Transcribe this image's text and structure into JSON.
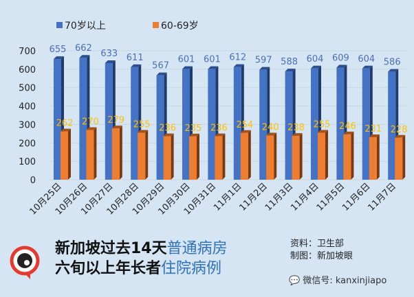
{
  "chart_data": {
    "type": "bar",
    "categories": [
      "10月25日",
      "10月26日",
      "10月27日",
      "10月28日",
      "10月29日",
      "10月30日",
      "10月31日",
      "11月1日",
      "11月2日",
      "11月3日",
      "11月4日",
      "11月5日",
      "11月6日",
      "11月7日"
    ],
    "series": [
      {
        "name": "70岁以上",
        "color": "#4472c4",
        "values": [
          655,
          662,
          633,
          611,
          567,
          601,
          601,
          612,
          597,
          588,
          604,
          609,
          604,
          586
        ]
      },
      {
        "name": "60-69岁",
        "color": "#ed7d31",
        "values": [
          262,
          270,
          279,
          255,
          236,
          235,
          236,
          254,
          240,
          238,
          255,
          246,
          231,
          228
        ]
      }
    ],
    "yticks": [
      0,
      100,
      200,
      300,
      400,
      500,
      600,
      700
    ],
    "ylim": [
      0,
      700
    ],
    "legend": "top-left",
    "grid": true,
    "label_colors": {
      "70岁以上": "#4a6fb5",
      "60-69岁": "#ffc000"
    }
  },
  "footer": {
    "title_line1_a": "新加坡过去14天",
    "title_line1_b": "普通病房",
    "title_line2_a": "六旬以上年长者",
    "title_line2_b": "住院病例",
    "source_label": "资料：",
    "source_value": "卫生部",
    "made_label": "制图：",
    "made_value": "新加坡眼",
    "wechat": "微信号: kanxinjiapo",
    "logo_text": "新加坡眼"
  }
}
